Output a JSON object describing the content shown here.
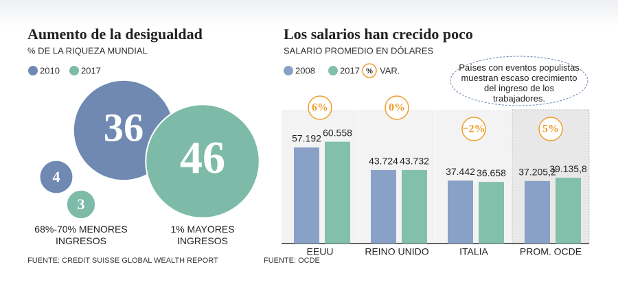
{
  "chart_data": [
    {
      "type": "bubble",
      "title": "Aumento de la desigualdad",
      "subtitle": "% DE LA RIQUEZA MUNDIAL",
      "categories": [
        "68%-70% MENORES INGRESOS",
        "1% MAYORES INGRESOS"
      ],
      "series": [
        {
          "name": "2010",
          "color": "#6f89b3",
          "values": [
            4,
            36
          ]
        },
        {
          "name": "2017",
          "color": "#7dbba8",
          "values": [
            3,
            46
          ]
        }
      ],
      "source": "FUENTE: CREDIT SUISSE GLOBAL WEALTH REPORT"
    },
    {
      "type": "bar",
      "title": "Los salarios han crecido poco",
      "subtitle": "SALARIO PROMEDIO EN DÓLARES",
      "categories": [
        "EEUU",
        "REINO UNIDO",
        "ITALIA",
        "PROM. OCDE"
      ],
      "series": [
        {
          "name": "2008",
          "color": "#8aa1c7",
          "values": [
            57192,
            43724,
            37442,
            37205.2
          ],
          "value_labels": [
            "57.192",
            "43.724",
            "37.442",
            "37.205,2"
          ]
        },
        {
          "name": "2017",
          "color": "#82c0ac",
          "values": [
            60558,
            43732,
            36658,
            39135.8
          ],
          "value_labels": [
            "60.558",
            "43.732",
            "36.658",
            "39.135,8"
          ]
        }
      ],
      "variation": {
        "name": "VAR.",
        "symbol": "%",
        "color": "#ef9d2c",
        "values": [
          6,
          0,
          -2,
          5
        ],
        "value_labels": [
          "6%",
          "0%",
          "−2%",
          "5%"
        ]
      },
      "ylim": [
        0,
        70000
      ],
      "annotation": "Países con eventos populistas muestran escaso crecimiento del ingreso de los trabajadores.",
      "source": "FUENTE: OCDE"
    }
  ]
}
